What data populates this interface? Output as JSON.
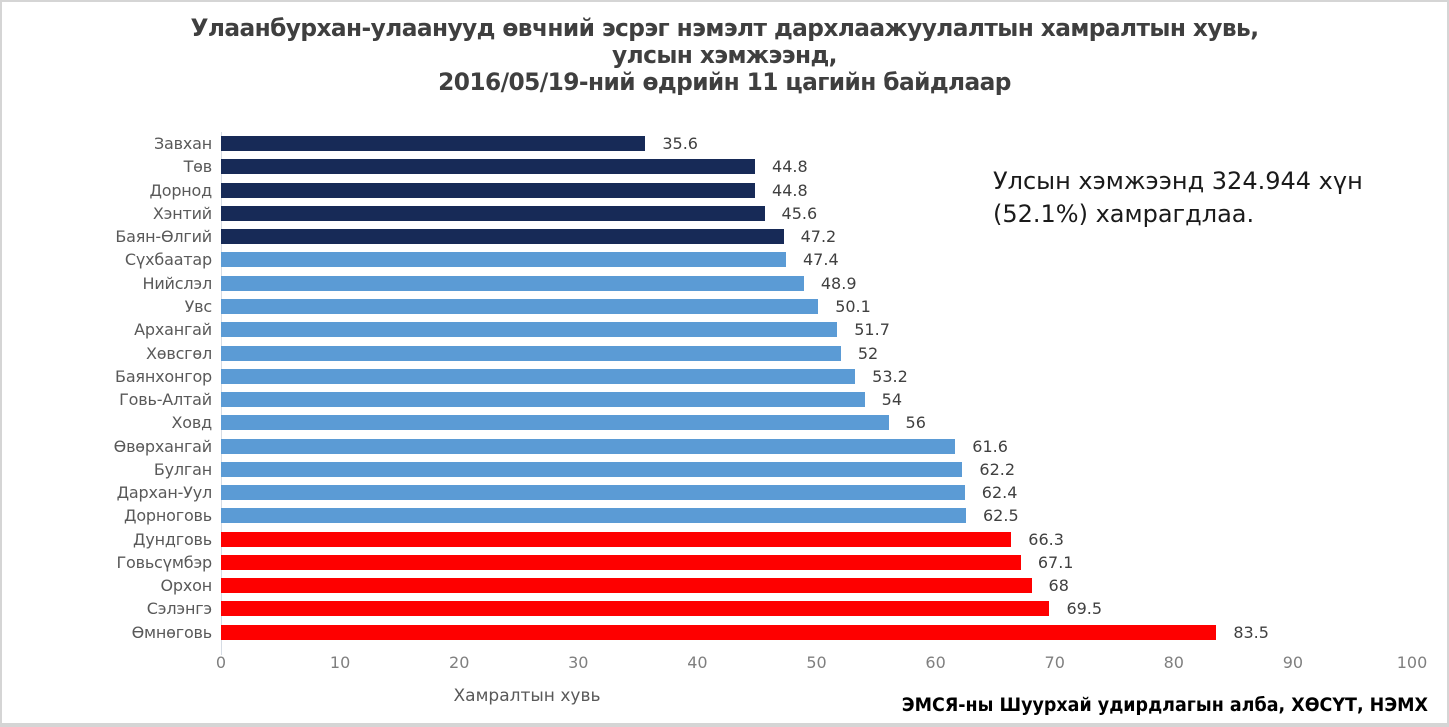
{
  "window": {
    "background": "#ffffff",
    "border_color": "#d5d5d5"
  },
  "title": {
    "text": "Улаанбурхан-улаанууд өвчний эсрэг нэмэлт дархлаажуулалтын хамралтын хувь,\nулсын хэмжээнд,\n2016/05/19-ний өдрийн 11 цагийн байдлаар",
    "color": "#3f3f3f"
  },
  "annotation": {
    "text": "Улсын хэмжээнд 324.944 хүн\n(52.1%) хамрагдлаа.",
    "color": "#1a1a1a"
  },
  "source": {
    "text": "ЭМСЯ-ны Шуурхай удирдлагын алба, ХӨСҮТ, НЭМХ",
    "color": "#000000"
  },
  "chart_data": {
    "type": "bar",
    "orientation": "horizontal",
    "title": "Улаанбурхан-улаанууд өвчний эсрэг нэмэлт дархлаажуулалтын хамралтын хувь, улсын хэмжээнд, 2016/05/19-ний өдрийн 11 цагийн байдлаар",
    "xlabel": "Хамралтын хувь",
    "ylabel": "",
    "xlim": [
      0,
      100
    ],
    "x_ticks": [
      0,
      10,
      20,
      30,
      40,
      50,
      60,
      70,
      80,
      90,
      100
    ],
    "grid": false,
    "legend": false,
    "categories": [
      "Завхан",
      "Төв",
      "Дорнод",
      "Хэнтий",
      "Баян-Өлгий",
      "Сүхбаатар",
      "Нийслэл",
      "Увс",
      "Архангай",
      "Хөвсгөл",
      "Баянхонгор",
      "Говь-Алтай",
      "Ховд",
      "Өвөрхангай",
      "Булган",
      "Дархан-Уул",
      "Дорноговь",
      "Дундговь",
      "Говьсүмбэр",
      "Орхон",
      "Сэлэнгэ",
      "Өмнөговь"
    ],
    "values": [
      35.6,
      44.8,
      44.8,
      45.6,
      47.2,
      47.4,
      48.9,
      50.1,
      51.7,
      52,
      53.2,
      54,
      56,
      61.6,
      62.2,
      62.4,
      62.5,
      66.3,
      67.1,
      68,
      69.5,
      83.5
    ],
    "bar_colors": [
      "#172a57",
      "#172a57",
      "#172a57",
      "#172a57",
      "#172a57",
      "#5b9bd5",
      "#5b9bd5",
      "#5b9bd5",
      "#5b9bd5",
      "#5b9bd5",
      "#5b9bd5",
      "#5b9bd5",
      "#5b9bd5",
      "#5b9bd5",
      "#5b9bd5",
      "#5b9bd5",
      "#5b9bd5",
      "#fe0000",
      "#fe0000",
      "#fe0000",
      "#fe0000",
      "#fe0000"
    ],
    "palette": {
      "dark_navy": "#172a57",
      "medium_blue": "#5b9bd5",
      "red": "#fe0000"
    },
    "category_label_color": "#595959",
    "value_label_color": "#404040",
    "tick_label_color": "#7f7f7f",
    "axis_line_color": "#d6dce4"
  }
}
